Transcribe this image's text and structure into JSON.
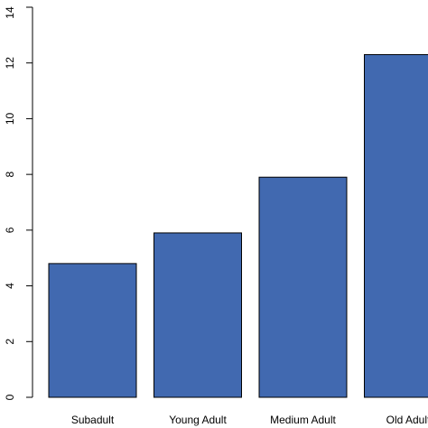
{
  "chart_data": {
    "type": "bar",
    "categories": [
      "Subadult",
      "Young Adult",
      "Medium Adult",
      "Old Adult"
    ],
    "values": [
      4.8,
      5.9,
      7.9,
      12.3
    ],
    "title": "",
    "xlabel": "",
    "ylabel": "",
    "ylim": [
      0,
      14
    ],
    "yticks": [
      0,
      2,
      4,
      6,
      8,
      10,
      12,
      14
    ],
    "bar_color": "#4169b0",
    "grid": false,
    "legend": "none"
  }
}
